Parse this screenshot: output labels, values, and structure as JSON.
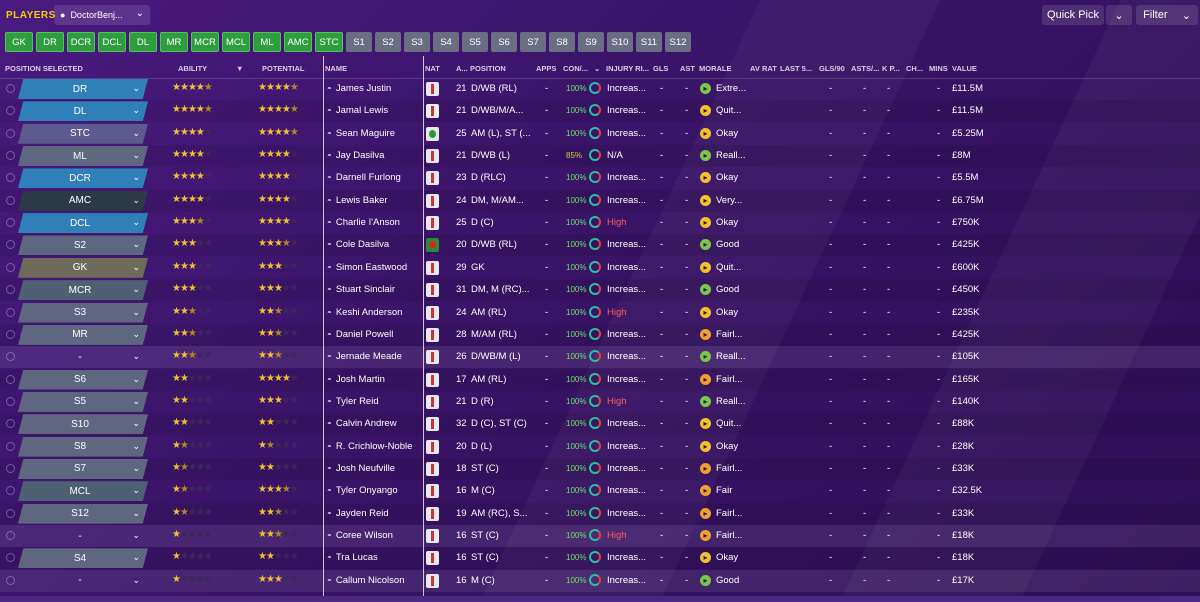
{
  "header": {
    "title": "PLAYERS",
    "view_name": "DoctorBenj...",
    "quick_pick": "Quick Pick",
    "filter": "Filter"
  },
  "position_buttons": [
    {
      "label": "GK",
      "style": "green"
    },
    {
      "label": "DR",
      "style": "green"
    },
    {
      "label": "DCR",
      "style": "green"
    },
    {
      "label": "DCL",
      "style": "green"
    },
    {
      "label": "DL",
      "style": "green"
    },
    {
      "label": "MR",
      "style": "green"
    },
    {
      "label": "MCR",
      "style": "green"
    },
    {
      "label": "MCL",
      "style": "green"
    },
    {
      "label": "ML",
      "style": "green"
    },
    {
      "label": "AMC",
      "style": "green"
    },
    {
      "label": "STC",
      "style": "green"
    },
    {
      "label": "S1",
      "style": "sub"
    },
    {
      "label": "S2",
      "style": "sub"
    },
    {
      "label": "S3",
      "style": "sub"
    },
    {
      "label": "S4",
      "style": "sub"
    },
    {
      "label": "S5",
      "style": "sub"
    },
    {
      "label": "S6",
      "style": "sub"
    },
    {
      "label": "S7",
      "style": "sub"
    },
    {
      "label": "S8",
      "style": "sub"
    },
    {
      "label": "S9",
      "style": "sub"
    },
    {
      "label": "S10",
      "style": "sub"
    },
    {
      "label": "S11",
      "style": "sub"
    },
    {
      "label": "S12",
      "style": "sub"
    }
  ],
  "columns": {
    "position_selected": "POSITION SELECTED",
    "ability": "ABILITY",
    "potential": "POTENTIAL",
    "name": "NAME",
    "nat": "NAT",
    "age": "A...",
    "position": "POSITION",
    "apps": "APPS",
    "con": "CON/...",
    "injury": "INJURY RI...",
    "gls": "GLS",
    "ast": "AST",
    "morale": "MORALE",
    "av_rat": "AV RAT",
    "last5": "LAST 5...",
    "gls90": "GLS/90",
    "asts90": "ASTS/...",
    "kp": "K P...",
    "ch": "CH...",
    "mins": "MINS",
    "value": "VALUE"
  },
  "players": [
    {
      "sel": "DR",
      "color": "blue",
      "ability": 4.5,
      "potential": 4.5,
      "name": "James Justin",
      "nat": "eng",
      "age": "21",
      "position": "D/WB (RL)",
      "apps": "-",
      "cond": "100%",
      "injury": "Increas...",
      "injury_high": false,
      "gls": "-",
      "ast": "-",
      "mood": "green",
      "morale": "Extre...",
      "avr": "-",
      "gls90": "-",
      "asts90": "-",
      "mins": "-",
      "value": "£11.5M"
    },
    {
      "sel": "DL",
      "color": "blue",
      "ability": 4.5,
      "potential": 4.5,
      "name": "Jamal Lewis",
      "nat": "ni",
      "age": "21",
      "position": "D/WB/M/A...",
      "apps": "-",
      "cond": "100%",
      "injury": "Increas...",
      "injury_high": false,
      "gls": "-",
      "ast": "-",
      "mood": "yellow",
      "morale": "Quit...",
      "avr": "-",
      "gls90": "-",
      "asts90": "-",
      "mins": "-",
      "value": "£11.5M"
    },
    {
      "sel": "STC",
      "color": "purp",
      "ability": 4,
      "potential": 4.5,
      "name": "Sean Maguire",
      "nat": "irl",
      "age": "25",
      "position": "AM (L), ST (...",
      "apps": "-",
      "cond": "100%",
      "injury": "Increas...",
      "injury_high": false,
      "gls": "-",
      "ast": "-",
      "mood": "yellow",
      "morale": "Okay",
      "avr": "-",
      "gls90": "-",
      "asts90": "-",
      "mins": "-",
      "value": "£5.25M"
    },
    {
      "sel": "ML",
      "color": "grey",
      "ability": 4,
      "potential": 4,
      "name": "Jay Dasilva",
      "nat": "eng",
      "age": "21",
      "position": "D/WB (L)",
      "apps": "-",
      "cond": "85%",
      "cond_warn": true,
      "injury": "N/A",
      "injury_high": false,
      "gls": "-",
      "ast": "-",
      "mood": "green",
      "morale": "Reall...",
      "avr": "-",
      "gls90": "-",
      "asts90": "-",
      "mins": "-",
      "value": "£8M"
    },
    {
      "sel": "DCR",
      "color": "blue",
      "ability": 4,
      "potential": 4,
      "name": "Darnell Furlong",
      "nat": "eng",
      "age": "23",
      "position": "D (RLC)",
      "apps": "-",
      "cond": "100%",
      "injury": "Increas...",
      "injury_high": false,
      "gls": "-",
      "ast": "-",
      "mood": "yellow",
      "morale": "Okay",
      "avr": "-",
      "gls90": "-",
      "asts90": "-",
      "mins": "-",
      "value": "£5.5M"
    },
    {
      "sel": "AMC",
      "color": "dark",
      "ability": 4,
      "potential": 4,
      "name": "Lewis Baker",
      "nat": "eng",
      "age": "24",
      "position": "DM, M/AM...",
      "apps": "-",
      "cond": "100%",
      "injury": "Increas...",
      "injury_high": false,
      "gls": "-",
      "ast": "-",
      "mood": "yellow",
      "morale": "Very...",
      "avr": "-",
      "gls90": "-",
      "asts90": "-",
      "mins": "-",
      "value": "£6.75M"
    },
    {
      "sel": "DCL",
      "color": "blue",
      "ability": 3.5,
      "potential": 4,
      "name": "Charlie I'Anson",
      "nat": "eng",
      "age": "25",
      "position": "D (C)",
      "apps": "-",
      "cond": "100%",
      "injury": "High",
      "injury_high": true,
      "gls": "-",
      "ast": "-",
      "mood": "yellow",
      "morale": "Okay",
      "avr": "-",
      "gls90": "-",
      "asts90": "-",
      "mins": "-",
      "value": "£750K"
    },
    {
      "sel": "S2",
      "color": "grey",
      "ability": 3,
      "potential": 3.5,
      "name": "Cole Dasilva",
      "nat": "wal",
      "age": "20",
      "position": "D/WB (RL)",
      "apps": "-",
      "cond": "100%",
      "injury": "Increas...",
      "injury_high": false,
      "gls": "-",
      "ast": "-",
      "mood": "green",
      "morale": "Good",
      "avr": "-",
      "gls90": "-",
      "asts90": "-",
      "mins": "-",
      "value": "£425K"
    },
    {
      "sel": "GK",
      "color": "olive",
      "ability": 3,
      "potential": 3,
      "name": "Simon Eastwood",
      "nat": "eng",
      "age": "29",
      "position": "GK",
      "apps": "-",
      "cond": "100%",
      "injury": "Increas...",
      "injury_high": false,
      "gls": "-",
      "ast": "-",
      "mood": "yellow",
      "morale": "Quit...",
      "avr": "-",
      "gls90": "-",
      "asts90": "-",
      "mins": "-",
      "value": "£600K"
    },
    {
      "sel": "MCR",
      "color": "slate",
      "ability": 3,
      "potential": 3,
      "name": "Stuart Sinclair",
      "nat": "eng",
      "age": "31",
      "position": "DM, M (RC)...",
      "apps": "-",
      "cond": "100%",
      "injury": "Increas...",
      "injury_high": false,
      "gls": "-",
      "ast": "-",
      "mood": "green",
      "morale": "Good",
      "avr": "-",
      "gls90": "-",
      "asts90": "-",
      "mins": "-",
      "value": "£450K"
    },
    {
      "sel": "S3",
      "color": "grey",
      "ability": 2.5,
      "potential": 2.5,
      "name": "Keshi Anderson",
      "nat": "eng",
      "age": "24",
      "position": "AM (RL)",
      "apps": "-",
      "cond": "100%",
      "injury": "High",
      "injury_high": true,
      "gls": "-",
      "ast": "-",
      "mood": "yellow",
      "morale": "Okay",
      "avr": "-",
      "gls90": "-",
      "asts90": "-",
      "mins": "-",
      "value": "£235K"
    },
    {
      "sel": "MR",
      "color": "grey",
      "ability": 2.5,
      "potential": 2.5,
      "name": "Daniel Powell",
      "nat": "eng",
      "age": "28",
      "position": "M/AM (RL)",
      "apps": "-",
      "cond": "100%",
      "injury": "Increas...",
      "injury_high": false,
      "gls": "-",
      "ast": "-",
      "mood": "orange",
      "morale": "Fairl...",
      "avr": "-",
      "gls90": "-",
      "asts90": "-",
      "mins": "-",
      "value": "£425K"
    },
    {
      "sel": "-",
      "color": "none",
      "ability": 2.5,
      "potential": 2.5,
      "name": "Jernade Meade",
      "nat": "eng",
      "age": "26",
      "position": "D/WB/M (L)",
      "apps": "-",
      "cond": "100%",
      "injury": "Increas...",
      "injury_high": false,
      "gls": "-",
      "ast": "-",
      "mood": "green",
      "morale": "Reall...",
      "avr": "-",
      "gls90": "-",
      "asts90": "-",
      "mins": "-",
      "value": "£105K",
      "highlight": true
    },
    {
      "sel": "S6",
      "color": "grey",
      "ability": 2,
      "potential": 4,
      "name": "Josh Martin",
      "nat": "eng",
      "age": "17",
      "position": "AM (RL)",
      "apps": "-",
      "cond": "100%",
      "injury": "Increas...",
      "injury_high": false,
      "gls": "-",
      "ast": "-",
      "mood": "orange",
      "morale": "Fairl...",
      "avr": "-",
      "gls90": "-",
      "asts90": "-",
      "mins": "-",
      "value": "£165K"
    },
    {
      "sel": "S5",
      "color": "grey",
      "ability": 2,
      "potential": 3,
      "name": "Tyler Reid",
      "nat": "eng",
      "age": "21",
      "position": "D (R)",
      "apps": "-",
      "cond": "100%",
      "injury": "High",
      "injury_high": true,
      "gls": "-",
      "ast": "-",
      "mood": "green",
      "morale": "Reall...",
      "avr": "-",
      "gls90": "-",
      "asts90": "-",
      "mins": "-",
      "value": "£140K"
    },
    {
      "sel": "S10",
      "color": "grey",
      "ability": 2,
      "potential": 2,
      "name": "Calvin Andrew",
      "nat": "eng",
      "age": "32",
      "position": "D (C), ST (C)",
      "apps": "-",
      "cond": "100%",
      "injury": "Increas...",
      "injury_high": false,
      "gls": "-",
      "ast": "-",
      "mood": "yellow",
      "morale": "Quit...",
      "avr": "-",
      "gls90": "-",
      "asts90": "-",
      "mins": "-",
      "value": "£88K"
    },
    {
      "sel": "S8",
      "color": "grey",
      "ability": 1.5,
      "potential": 1.5,
      "name": "R. Crichlow-Noble",
      "nat": "eng",
      "age": "20",
      "position": "D (L)",
      "apps": "-",
      "cond": "100%",
      "injury": "Increas...",
      "injury_high": false,
      "gls": "-",
      "ast": "-",
      "mood": "yellow",
      "morale": "Okay",
      "avr": "-",
      "gls90": "-",
      "asts90": "-",
      "mins": "-",
      "value": "£28K"
    },
    {
      "sel": "S7",
      "color": "grey",
      "ability": 1.5,
      "potential": 2,
      "name": "Josh Neufville",
      "nat": "eng",
      "age": "18",
      "position": "ST (C)",
      "apps": "-",
      "cond": "100%",
      "injury": "Increas...",
      "injury_high": false,
      "gls": "-",
      "ast": "-",
      "mood": "orange",
      "morale": "Fairl...",
      "avr": "-",
      "gls90": "-",
      "asts90": "-",
      "mins": "-",
      "value": "£33K"
    },
    {
      "sel": "MCL",
      "color": "slate",
      "ability": 1.5,
      "potential": 3.5,
      "name": "Tyler Onyango",
      "nat": "eng",
      "age": "16",
      "position": "M (C)",
      "apps": "-",
      "cond": "100%",
      "injury": "Increas...",
      "injury_high": false,
      "gls": "-",
      "ast": "-",
      "mood": "orange",
      "morale": "Fair",
      "avr": "-",
      "gls90": "-",
      "asts90": "-",
      "mins": "-",
      "value": "£32.5K"
    },
    {
      "sel": "S12",
      "color": "grey",
      "ability": 1.5,
      "potential": 2.5,
      "name": "Jayden Reid",
      "nat": "eng",
      "age": "19",
      "position": "AM (RC), S...",
      "apps": "-",
      "cond": "100%",
      "injury": "Increas...",
      "injury_high": false,
      "gls": "-",
      "ast": "-",
      "mood": "orange",
      "morale": "Fairl...",
      "avr": "-",
      "gls90": "-",
      "asts90": "-",
      "mins": "-",
      "value": "£33K"
    },
    {
      "sel": "-",
      "color": "none",
      "ability": 1,
      "potential": 2.5,
      "name": "Coree Wilson",
      "nat": "eng",
      "age": "16",
      "position": "ST (C)",
      "apps": "-",
      "cond": "100%",
      "injury": "High",
      "injury_high": true,
      "gls": "-",
      "ast": "-",
      "mood": "orange",
      "morale": "Fairl...",
      "avr": "-",
      "gls90": "-",
      "asts90": "-",
      "mins": "-",
      "value": "£18K",
      "highlight": true
    },
    {
      "sel": "S4",
      "color": "grey",
      "ability": 1,
      "potential": 2,
      "name": "Tra Lucas",
      "nat": "eng",
      "age": "16",
      "position": "ST (C)",
      "apps": "-",
      "cond": "100%",
      "injury": "Increas...",
      "injury_high": false,
      "gls": "-",
      "ast": "-",
      "mood": "yellow",
      "morale": "Okay",
      "avr": "-",
      "gls90": "-",
      "asts90": "-",
      "mins": "-",
      "value": "£18K"
    },
    {
      "sel": "-",
      "color": "none",
      "ability": 1,
      "potential": 3,
      "name": "Callum Nicolson",
      "nat": "eng",
      "age": "16",
      "position": "M (C)",
      "apps": "-",
      "cond": "100%",
      "injury": "Increas...",
      "injury_high": false,
      "gls": "-",
      "ast": "-",
      "mood": "green",
      "morale": "Good",
      "avr": "-",
      "gls90": "-",
      "asts90": "-",
      "mins": "-",
      "value": "£17K",
      "highlight": true
    }
  ]
}
